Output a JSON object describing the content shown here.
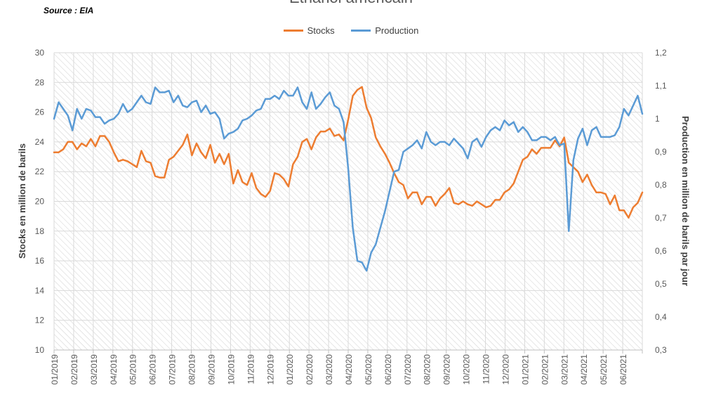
{
  "source": "Source : EIA",
  "chart_data": {
    "type": "line",
    "title": "Ethanol américain",
    "ylabel_left": "Stocks en million de barils",
    "ylabel_right": "Production en million de barils par jour",
    "ylim_left": [
      10,
      30
    ],
    "ylim_right": [
      0.3,
      1.2
    ],
    "yticks_left": [
      "10",
      "12",
      "14",
      "16",
      "18",
      "20",
      "22",
      "24",
      "26",
      "28",
      "30"
    ],
    "yticks_right": [
      "0,3",
      "0,4",
      "0,5",
      "0,6",
      "0,7",
      "0,8",
      "0,9",
      "1",
      "1,1",
      "1,2"
    ],
    "x_ticks": [
      "01/2019",
      "02/2019",
      "03/2019",
      "04/2019",
      "05/2019",
      "06/2019",
      "07/2019",
      "08/2019",
      "09/2019",
      "10/2019",
      "11/2019",
      "12/2019",
      "01/2020",
      "02/2020",
      "03/2020",
      "04/2020",
      "05/2020",
      "06/2020",
      "07/2020",
      "08/2020",
      "09/2020",
      "10/2020",
      "11/2020",
      "12/2020",
      "01/2021",
      "02/2021",
      "03/2021",
      "04/2021",
      "05/2021",
      "06/2021"
    ],
    "grid": true,
    "legend_position": "top",
    "series": [
      {
        "name": "Stocks",
        "axis": "left",
        "color": "#ED7D31",
        "values": [
          23.3,
          23.3,
          23.5,
          24,
          24,
          23.5,
          23.9,
          23.7,
          24.2,
          23.7,
          24.4,
          24.4,
          24,
          23.3,
          22.7,
          22.8,
          22.7,
          22.5,
          22.3,
          23.4,
          22.7,
          22.6,
          21.7,
          21.6,
          21.6,
          22.8,
          23,
          23.4,
          23.8,
          24.5,
          23.1,
          23.9,
          23.3,
          22.9,
          23.8,
          22.6,
          23.2,
          22.5,
          23.2,
          21.2,
          22.1,
          21.3,
          21.1,
          21.9,
          20.9,
          20.5,
          20.3,
          20.7,
          21.9,
          21.8,
          21.5,
          21,
          22.5,
          23,
          24,
          24.2,
          23.5,
          24.3,
          24.7,
          24.7,
          24.9,
          24.4,
          24.5,
          24.1,
          25.5,
          27.1,
          27.5,
          27.7,
          26.3,
          25.6,
          24.3,
          23.7,
          23.2,
          22.6,
          21.9,
          21.3,
          21.1,
          20.2,
          20.6,
          20.6,
          19.8,
          20.3,
          20.3,
          19.7,
          20.2,
          20.5,
          20.9,
          19.9,
          19.8,
          20,
          19.8,
          19.7,
          20,
          19.8,
          19.6,
          19.7,
          20.1,
          20.1,
          20.6,
          20.8,
          21.2,
          22,
          22.8,
          23,
          23.5,
          23.2,
          23.6,
          23.6,
          23.6,
          24.1,
          23.7,
          24.3,
          22.6,
          22.3,
          22,
          21.3,
          21.8,
          21.1,
          20.6,
          20.6,
          20.5,
          19.8,
          20.4,
          19.4,
          19.4,
          18.9,
          19.6,
          19.9,
          20.6
        ]
      },
      {
        "name": "Production",
        "axis": "right",
        "color": "#5B9BD5",
        "values": [
          1,
          1.05,
          1.03,
          1.01,
          0.965,
          1.03,
          1,
          1.03,
          1.025,
          1.005,
          1.005,
          0.985,
          0.995,
          1,
          1.015,
          1.045,
          1.02,
          1.03,
          1.05,
          1.07,
          1.05,
          1.045,
          1.095,
          1.08,
          1.08,
          1.085,
          1.05,
          1.07,
          1.04,
          1.035,
          1.05,
          1.055,
          1.02,
          1.04,
          1.015,
          1.02,
          1,
          0.94,
          0.955,
          0.96,
          0.97,
          0.995,
          1,
          1.01,
          1.025,
          1.03,
          1.06,
          1.06,
          1.07,
          1.06,
          1.085,
          1.07,
          1.07,
          1.095,
          1.05,
          1.03,
          1.08,
          1.03,
          1.045,
          1.065,
          1.08,
          1.04,
          1.03,
          0.99,
          0.85,
          0.67,
          0.57,
          0.565,
          0.54,
          0.595,
          0.62,
          0.67,
          0.72,
          0.78,
          0.84,
          0.845,
          0.9,
          0.91,
          0.92,
          0.935,
          0.91,
          0.96,
          0.93,
          0.92,
          0.93,
          0.93,
          0.92,
          0.94,
          0.925,
          0.91,
          0.88,
          0.93,
          0.94,
          0.915,
          0.945,
          0.965,
          0.975,
          0.965,
          0.995,
          0.98,
          0.99,
          0.96,
          0.975,
          0.96,
          0.935,
          0.935,
          0.945,
          0.945,
          0.935,
          0.945,
          0.92,
          0.925,
          0.66,
          0.875,
          0.94,
          0.97,
          0.92,
          0.965,
          0.975,
          0.945,
          0.945,
          0.945,
          0.95,
          0.975,
          1.03,
          1.01,
          1.04,
          1.07,
          1.015
        ]
      }
    ]
  }
}
